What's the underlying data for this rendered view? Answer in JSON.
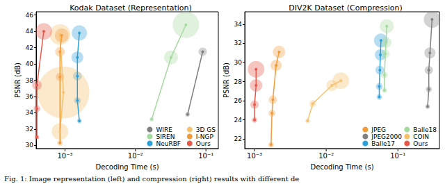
{
  "caption": "Fig. 1: Image representation (left) and compression (right) results with different de",
  "chart_data": [
    {
      "type": "scatter",
      "title": "Kodak Dataset (Representation)",
      "x_label": "Decoding Time (s)",
      "y_label": "PSNR (dB)",
      "log": "x",
      "grid": false,
      "legend": "lower right",
      "xlim": [
        0.00039,
        0.15
      ],
      "xticks": [
        {
          "value": 0.001,
          "label": "10⁻³"
        },
        {
          "value": 0.01,
          "label": "10⁻²"
        },
        {
          "value": 0.1,
          "label": "10⁻¹"
        }
      ],
      "ylim": [
        29.6,
        46.4
      ],
      "yticks": [
        30,
        32,
        34,
        36,
        38,
        40,
        42,
        44,
        46
      ],
      "series": [
        {
          "name": "WIRE",
          "color": "#808080",
          "marker": "circle",
          "line_style": "solid",
          "x": [
            0.055,
            0.09
          ],
          "values": [
            33.8,
            41.5
          ],
          "sizes": [
            3,
            9
          ]
        },
        {
          "name": "SIREN",
          "color": "#a6d9a0",
          "marker": "circle",
          "line_style": "solid",
          "x": [
            0.017,
            0.032,
            0.052
          ],
          "values": [
            33.2,
            40.8,
            44.8
          ],
          "sizes": [
            3,
            25,
            90
          ]
        },
        {
          "name": "NeuRBF",
          "color": "#2f9fd8",
          "marker": "circle",
          "line_style": "solid",
          "x": [
            0.0016,
            0.0015,
            0.0015,
            0.0015,
            0.0016
          ],
          "values": [
            33.0,
            35.5,
            38.5,
            40.8,
            43.8
          ],
          "sizes": [
            3,
            6,
            10,
            18,
            30
          ]
        },
        {
          "name": "3D GS",
          "color": "#f7c16b",
          "marker": "circle",
          "line_style": "solid",
          "x": [
            0.00085,
            0.00095,
            0.00085
          ],
          "values": [
            31.7,
            36.5,
            43.6
          ],
          "sizes": [
            36,
            350,
            56
          ]
        },
        {
          "name": "I-NGP",
          "color": "#f39a3b",
          "marker": "circle",
          "line_style": "solid",
          "x": [
            0.00085,
            0.00085,
            0.00085,
            0.0009
          ],
          "values": [
            30.3,
            38.4,
            41.5,
            43.5
          ],
          "sizes": [
            4,
            9,
            12,
            25
          ]
        },
        {
          "name": "Ours",
          "color": "#e8584a",
          "marker": "circle",
          "line_style": "solid",
          "x": [
            0.0004,
            0.0004,
            0.0004,
            0.0005
          ],
          "values": [
            31.0,
            34.5,
            37.4,
            44.0
          ],
          "sizes": [
            3,
            6,
            12,
            36
          ]
        }
      ]
    },
    {
      "type": "scatter",
      "title": "DIV2K Dataset (Compression)",
      "x_label": "Decoding Time (s)",
      "y_label": "PSNR (dB)",
      "log": "x",
      "grid": false,
      "legend": "lower right",
      "xlim": [
        0.00073,
        0.38
      ],
      "xticks": [
        {
          "value": 0.001,
          "label": "10⁻³"
        },
        {
          "value": 0.01,
          "label": "10⁻²"
        },
        {
          "value": 0.1,
          "label": "10⁻¹"
        }
      ],
      "ylim": [
        21.0,
        35.3
      ],
      "yticks": [
        22,
        24,
        26,
        28,
        30,
        32,
        34
      ],
      "series": [
        {
          "name": "JPEG",
          "color": "#f39a3b",
          "marker": "circle",
          "line_style": "solid",
          "x": [
            0.0017,
            0.00175,
            0.0018,
            0.002,
            0.0022
          ],
          "values": [
            21.4,
            24.7,
            26.1,
            29.7,
            31.1
          ],
          "sizes": [
            4,
            6,
            9,
            16,
            20
          ]
        },
        {
          "name": "JPEG2000",
          "color": "#808080",
          "marker": "circle",
          "line_style": "solid",
          "x": [
            0.26,
            0.27,
            0.27,
            0.28,
            0.3
          ],
          "values": [
            25.4,
            27.2,
            29.2,
            31.0,
            34.5
          ],
          "sizes": [
            3,
            5,
            9,
            16,
            36
          ]
        },
        {
          "name": "Balle17",
          "color": "#2f9fd8",
          "marker": "circle",
          "line_style": "solid",
          "x": [
            0.055,
            0.055,
            0.056,
            0.057,
            0.058
          ],
          "values": [
            26.4,
            27.5,
            29.2,
            30.8,
            32.3
          ],
          "sizes": [
            4,
            6,
            10,
            16,
            25
          ]
        },
        {
          "name": "Balle18",
          "color": "#a6d9a0",
          "marker": "circle",
          "line_style": "solid",
          "x": [
            0.065,
            0.065,
            0.067,
            0.068,
            0.07
          ],
          "values": [
            27.1,
            28.7,
            30.9,
            32.1,
            33.8
          ],
          "sizes": [
            4,
            6,
            10,
            16,
            25
          ]
        },
        {
          "name": "COIN",
          "color": "#f7c16b",
          "marker": "circle",
          "line_style": "solid",
          "x": [
            0.0055,
            0.0065,
            0.012,
            0.016
          ],
          "values": [
            23.9,
            25.7,
            27.6,
            28.1
          ],
          "sizes": [
            3,
            6,
            16,
            36
          ]
        },
        {
          "name": "Ours",
          "color": "#e8584a",
          "marker": "circle",
          "line_style": "solid",
          "x": [
            0.001,
            0.001,
            0.00105,
            0.00105
          ],
          "values": [
            24.0,
            25.6,
            27.6,
            29.3
          ],
          "sizes": [
            4,
            9,
            20,
            36
          ]
        }
      ]
    }
  ]
}
